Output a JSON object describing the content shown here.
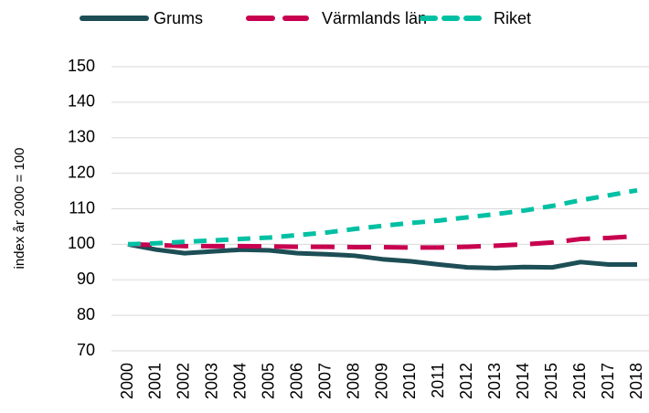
{
  "chart_data": {
    "type": "line",
    "y_label": "index år 2000 = 100",
    "categories": [
      "2000",
      "2001",
      "2002",
      "2003",
      "2004",
      "2005",
      "2006",
      "2007",
      "2008",
      "2009",
      "2010",
      "2011",
      "2012",
      "2013",
      "2014",
      "2015",
      "2016",
      "2017",
      "2018"
    ],
    "series": [
      {
        "name": "Grums",
        "color": "#1d4e56",
        "dash": "solid",
        "values": [
          100,
          98.5,
          97.5,
          98,
          98.5,
          98.3,
          97.5,
          97.2,
          96.8,
          95.8,
          95.2,
          94.3,
          93.5,
          93.3,
          93.6,
          93.5,
          95,
          94.3,
          94.3
        ]
      },
      {
        "name": "Värmlands län",
        "color": "#c8004f",
        "dash": "long",
        "values": [
          100,
          99.8,
          99.5,
          99.5,
          99.5,
          99.4,
          99.3,
          99.3,
          99.2,
          99.2,
          99.1,
          99.1,
          99.3,
          99.6,
          100,
          100.5,
          101.5,
          101.8,
          102.3
        ]
      },
      {
        "name": "Riket",
        "color": "#00c0a3",
        "dash": "short",
        "values": [
          100,
          100.3,
          100.7,
          101.1,
          101.5,
          101.9,
          102.6,
          103.3,
          104.3,
          105.2,
          106,
          106.7,
          107.6,
          108.5,
          109.5,
          110.8,
          112.4,
          113.8,
          115.2
        ]
      }
    ],
    "ylim": [
      70,
      150
    ],
    "yticks": [
      70,
      80,
      90,
      100,
      110,
      120,
      130,
      140,
      150
    ],
    "grid": true,
    "legend": "top"
  }
}
